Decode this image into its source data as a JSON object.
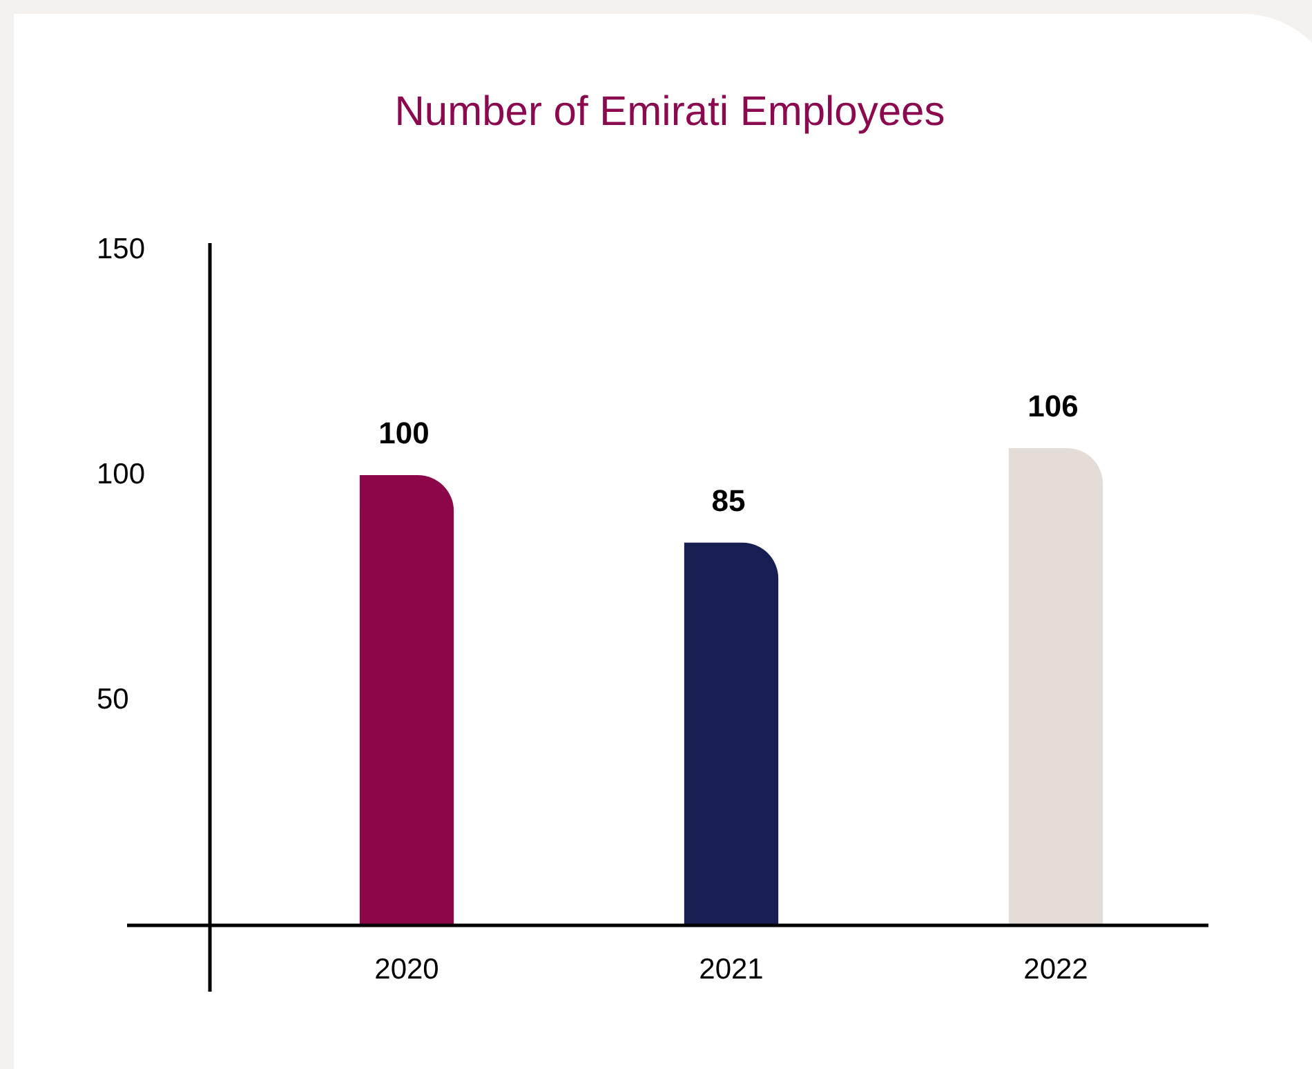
{
  "chart_data": {
    "type": "bar",
    "title": "Number of Emirati Employees",
    "categories": [
      "2020",
      "2021",
      "2022"
    ],
    "values": [
      100,
      85,
      106
    ],
    "colors": [
      "#8b0748",
      "#161e52",
      "#e4dcd6"
    ],
    "ylim": [
      0,
      150
    ],
    "yticks": [
      50,
      100,
      150
    ],
    "grid": false,
    "legend": false,
    "data_labels": true
  }
}
